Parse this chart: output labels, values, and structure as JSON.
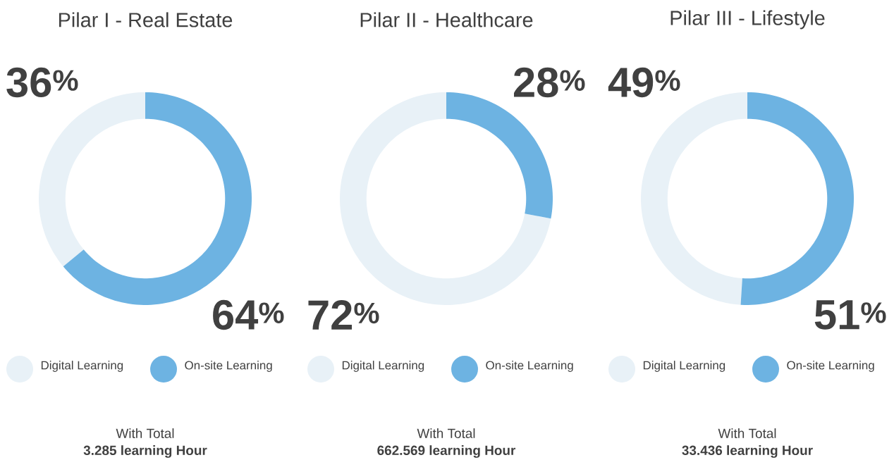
{
  "chart_data": [
    {
      "type": "donut",
      "title": "Pilar I - Real Estate",
      "categories": [
        "Digital Learning",
        "On-site Learning"
      ],
      "values": [
        36,
        64
      ],
      "colors": [
        "#e8f1f7",
        "#6db3e2"
      ],
      "value_labels": [
        "36$^{%}$",
        "64$^{%}$"
      ],
      "legend": "bottom",
      "annotations": [
        "With Total",
        "**3.285 learning Hour**"
      ]
    },
    {
      "type": "donut",
      "title": "Pilar II - Healthcare",
      "categories": [
        "Digital Learning",
        "On-site Learning"
      ],
      "values": [
        72,
        28
      ],
      "colors": [
        "#e8f1f7",
        "#6db3e2"
      ],
      "value_labels": [
        "72$^{%}$",
        "28$^{%}$"
      ],
      "legend": "bottom",
      "annotations": [
        "With Total",
        "**662.569 learning Hour**"
      ]
    },
    {
      "type": "donut",
      "title": "Pilar III - Lifestyle",
      "categories": [
        "Digital Learning",
        "On-site Learning"
      ],
      "values": [
        49,
        51
      ],
      "colors": [
        "#e8f1f7",
        "#6db3e2"
      ],
      "value_labels": [
        "49$^{%}$",
        "51$^{%}$"
      ],
      "legend": "bottom",
      "annotations": [
        "With Total",
        "**33.436 learning Hour**"
      ]
    }
  ]
}
